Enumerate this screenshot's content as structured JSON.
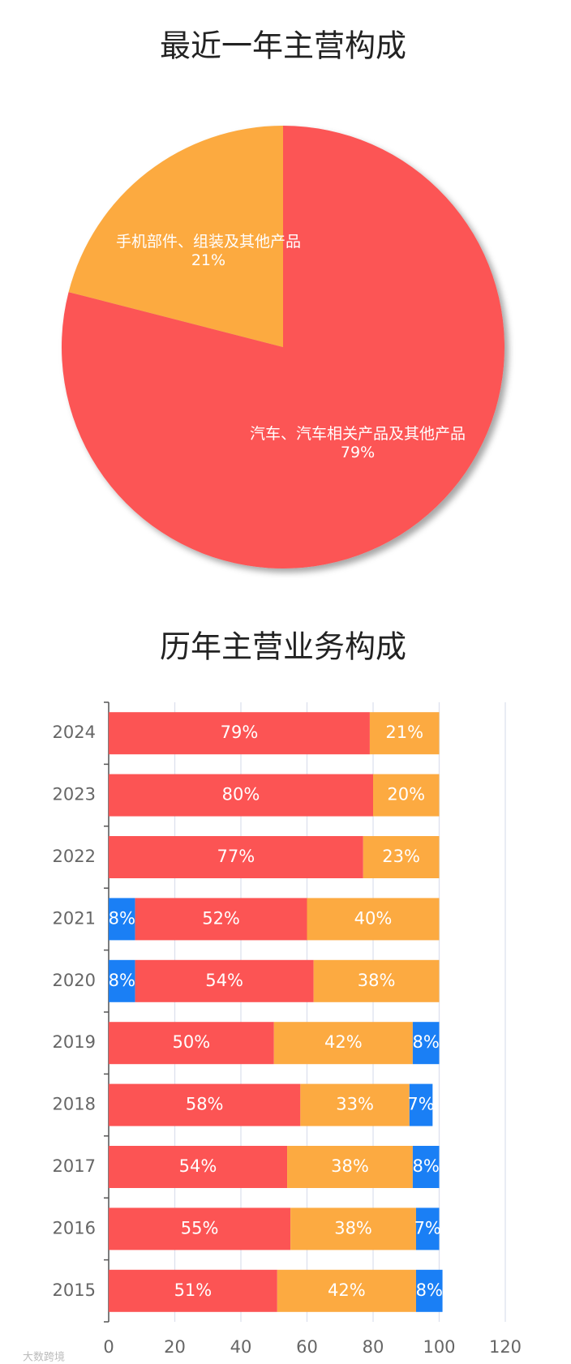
{
  "chart_data": [
    {
      "type": "pie",
      "title": "最近一年主营构成",
      "categories": [
        "汽车、汽车相关产品及其他产品",
        "手机部件、组装及其他产品"
      ],
      "values": [
        79,
        21
      ],
      "value_labels": [
        "79%",
        "21%"
      ],
      "colors": [
        "#fc5454",
        "#fcaa41"
      ]
    },
    {
      "type": "stacked_barh",
      "title": "历年主营业务构成",
      "categories": [
        "2024",
        "2023",
        "2022",
        "2021",
        "2020",
        "2019",
        "2018",
        "2017",
        "2016",
        "2015"
      ],
      "series": [
        {
          "color": "#1a7ff5",
          "values": [
            null,
            null,
            null,
            8,
            8,
            null,
            null,
            null,
            null,
            null
          ],
          "value_labels": [
            null,
            null,
            null,
            "8%",
            "8%",
            null,
            null,
            null,
            null,
            null
          ]
        },
        {
          "color": "#fc5454",
          "values": [
            79,
            80,
            77,
            52,
            54,
            50,
            58,
            54,
            55,
            51
          ],
          "value_labels": [
            "79%",
            "80%",
            "77%",
            "52%",
            "54%",
            "50%",
            "58%",
            "54%",
            "55%",
            "51%"
          ]
        },
        {
          "color": "#fcaa41",
          "values": [
            21,
            20,
            23,
            40,
            38,
            42,
            33,
            38,
            38,
            42
          ],
          "value_labels": [
            "21%",
            "20%",
            "23%",
            "40%",
            "38%",
            "42%",
            "33%",
            "38%",
            "38%",
            "42%"
          ]
        },
        {
          "color": "#1a7ff5",
          "values": [
            null,
            null,
            null,
            null,
            null,
            8,
            7,
            8,
            7,
            8
          ],
          "value_labels": [
            null,
            null,
            null,
            null,
            null,
            "8%",
            "7%",
            "8%",
            "7%",
            "8%"
          ]
        }
      ],
      "xlim": [
        0,
        120
      ],
      "xticks": [
        0,
        20,
        40,
        60,
        80,
        100,
        120
      ],
      "grid": true
    }
  ],
  "watermark": "大数跨境"
}
